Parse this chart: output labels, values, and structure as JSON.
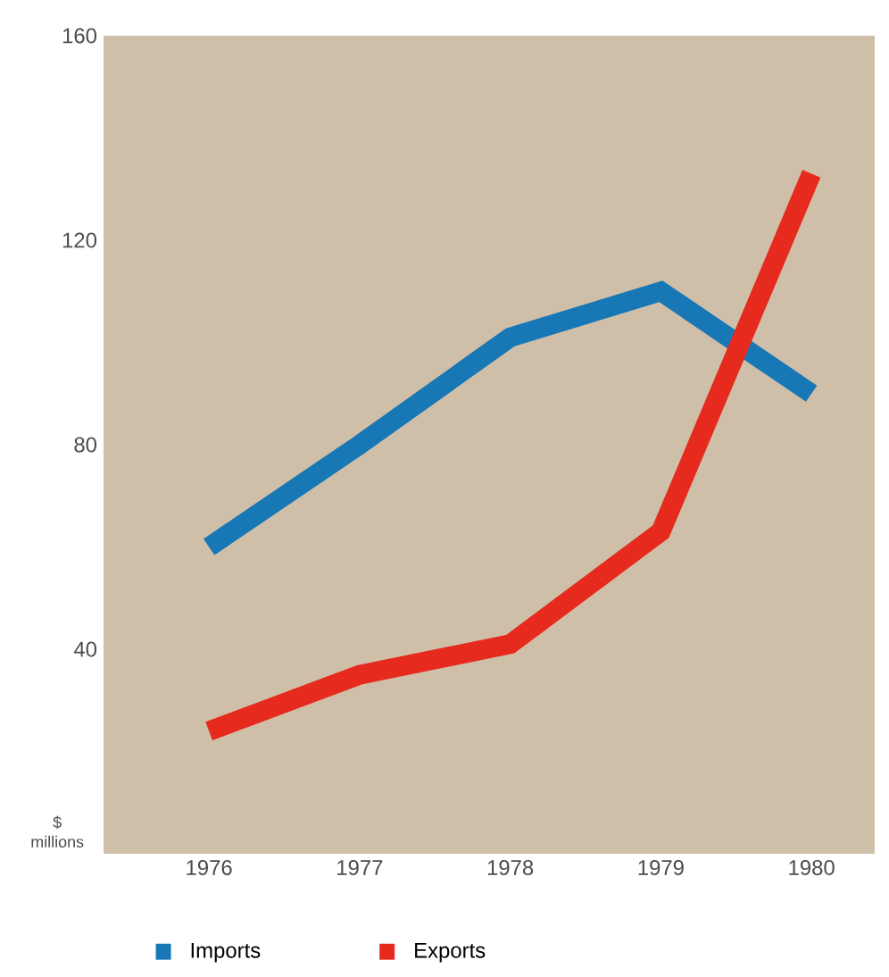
{
  "chart_data": {
    "type": "line",
    "categories": [
      "1976",
      "1977",
      "1978",
      "1979",
      "1980"
    ],
    "series": [
      {
        "name": "Imports",
        "color": "#1877b5",
        "values": [
          60,
          80,
          101,
          110,
          90
        ]
      },
      {
        "name": "Exports",
        "color": "#e62a1e",
        "values": [
          24,
          35,
          41,
          63,
          133
        ]
      }
    ],
    "ylabel": "$ millions",
    "ylim": [
      0,
      160
    ],
    "yticks": [
      40,
      80,
      120,
      160
    ],
    "legend": "bottom",
    "grid": false,
    "marker": "none",
    "line_style": "solid"
  }
}
